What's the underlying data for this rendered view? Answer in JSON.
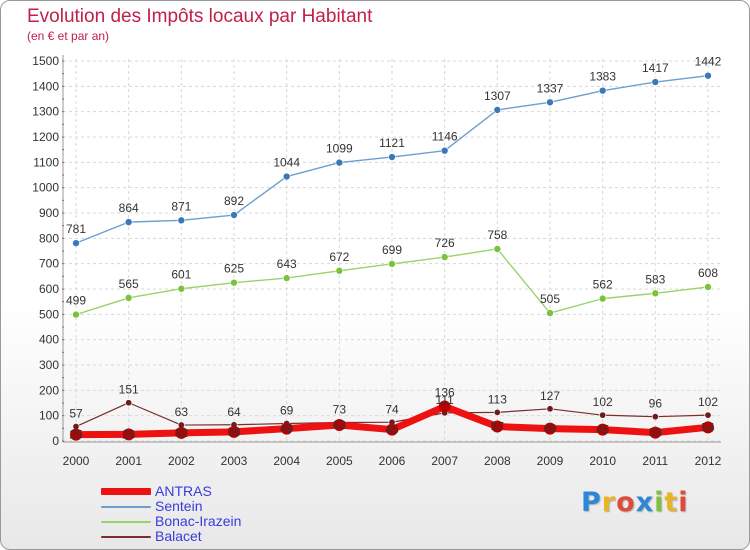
{
  "chart_data": {
    "type": "line",
    "title": "Evolution des Impôts locaux par Habitant",
    "subtitle": "(en € et par an)",
    "x": [
      2000,
      2001,
      2002,
      2003,
      2004,
      2005,
      2006,
      2007,
      2008,
      2009,
      2010,
      2011,
      2012
    ],
    "x_tick_labels": [
      "2000",
      "2001",
      "2002",
      "2003",
      "2004",
      "2005",
      "2006",
      "2007",
      "2008",
      "2009",
      "2010",
      "2011",
      "2012"
    ],
    "ylim": [
      0,
      1500
    ],
    "y_ticks": [
      0,
      100,
      200,
      300,
      400,
      500,
      600,
      700,
      800,
      900,
      1000,
      1100,
      1200,
      1300,
      1400,
      1500
    ],
    "y_tick_labels": [
      "0",
      "100",
      "200",
      "300",
      "400",
      "500",
      "600",
      "700",
      "800",
      "900",
      "1000",
      "1100",
      "1200",
      "1300",
      "1400",
      "1500"
    ],
    "grid": true,
    "legend_position": "bottom-left",
    "series": [
      {
        "name": "Sentein",
        "color": "#6c9fcf",
        "marker": "#3a78b8",
        "values": [
          781,
          864,
          871,
          892,
          1044,
          1099,
          1121,
          1146,
          1307,
          1337,
          1383,
          1417,
          1442
        ],
        "labels": [
          "781",
          "864",
          "871",
          "892",
          "1044",
          "1099",
          "1121",
          "1146",
          "1307",
          "1337",
          "1383",
          "1417",
          "1442"
        ]
      },
      {
        "name": "Bonac-Irazein",
        "color": "#9ad36a",
        "marker": "#7cc23e",
        "values": [
          499,
          565,
          601,
          625,
          643,
          672,
          699,
          726,
          758,
          505,
          562,
          583,
          608
        ],
        "labels": [
          "499",
          "565",
          "601",
          "625",
          "643",
          "672",
          "699",
          "726",
          "758",
          "505",
          "562",
          "583",
          "608"
        ]
      },
      {
        "name": "Balacet",
        "color": "#7a2e2e",
        "marker": "#6a1e1e",
        "values": [
          57,
          151,
          63,
          64,
          69,
          73,
          74,
          111,
          113,
          127,
          102,
          96,
          102
        ],
        "labels": [
          "57",
          "151",
          "63",
          "64",
          "69",
          "73",
          "74",
          "111",
          "113",
          "127",
          "102",
          "96",
          "102"
        ]
      },
      {
        "name": "ANTRAS",
        "color": "#ee1111",
        "marker": "#bb0000",
        "values": [
          25,
          26,
          32,
          36,
          49,
          63,
          45,
          136,
          57,
          49,
          45,
          33,
          54
        ],
        "labels": [
          "25",
          "26",
          "32",
          "36",
          "49",
          "63",
          "45",
          "136",
          "57",
          "49",
          "45",
          "33",
          "54"
        ]
      }
    ]
  },
  "legend": [
    {
      "name": "ANTRAS",
      "color": "#ee1111"
    },
    {
      "name": "Sentein",
      "color": "#6c9fcf"
    },
    {
      "name": "Bonac-Irazein",
      "color": "#9ad36a"
    },
    {
      "name": "Balacet",
      "color": "#7a2e2e"
    }
  ],
  "logo": {
    "text": "Proxiti"
  }
}
